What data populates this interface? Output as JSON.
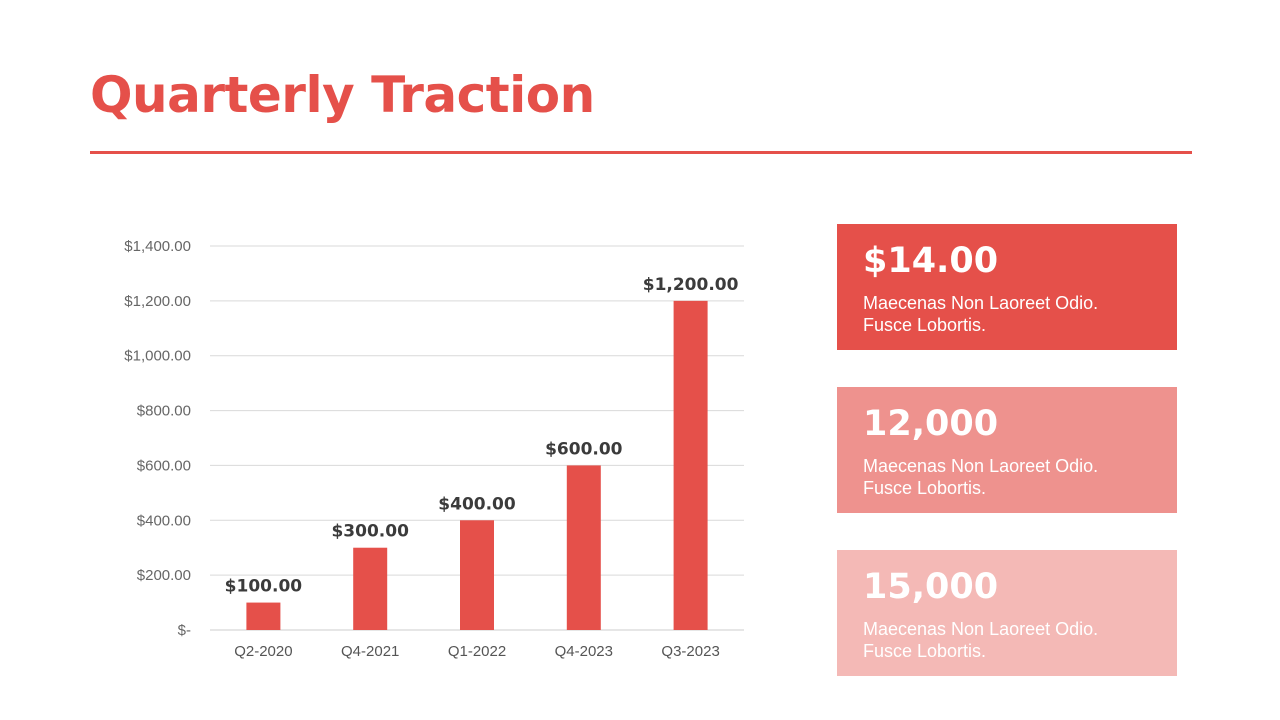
{
  "slide": {
    "title": "Quarterly Traction"
  },
  "colors": {
    "accent": "#e5504a",
    "card_1": "#e5504a",
    "card_2": "#ee928e",
    "card_3": "#f4b9b6",
    "grid": "#d9d9d9"
  },
  "chart_data": {
    "type": "bar",
    "title": "",
    "xlabel": "",
    "ylabel": "",
    "categories": [
      "Q2-2020",
      "Q4-2021",
      "Q1-2022",
      "Q4-2023",
      "Q3-2023"
    ],
    "values": [
      100,
      300,
      400,
      600,
      1200
    ],
    "data_labels": [
      "$100.00",
      "$300.00",
      "$400.00",
      "$600.00",
      "$1,200.00"
    ],
    "ylim": [
      0,
      1400
    ],
    "yticks": [
      0,
      200,
      400,
      600,
      800,
      1000,
      1200,
      1400
    ],
    "ytick_labels": [
      "$-",
      "$200.00",
      "$400.00",
      "$600.00",
      "$800.00",
      "$1,000.00",
      "$1,200.00",
      "$1,400.00"
    ],
    "grid": true,
    "bar_color": "#e5504a"
  },
  "stats": [
    {
      "value": "$14.00",
      "line1": "Maecenas Non Laoreet Odio.",
      "line2": "Fusce Lobortis.",
      "color": "#e5504a"
    },
    {
      "value": "12,000",
      "line1": "Maecenas Non Laoreet Odio.",
      "line2": "Fusce Lobortis.",
      "color": "#ee928e"
    },
    {
      "value": "15,000",
      "line1": "Maecenas Non Laoreet Odio.",
      "line2": "Fusce Lobortis.",
      "color": "#f4b9b6"
    }
  ]
}
